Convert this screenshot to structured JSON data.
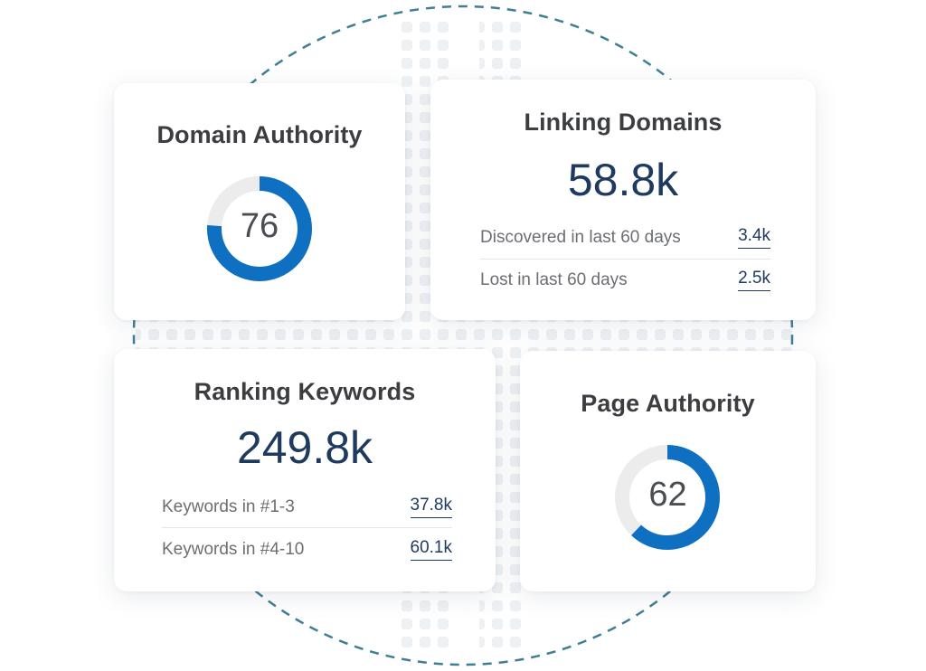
{
  "colors": {
    "accent": "#0f6fc0",
    "track": "#ececec",
    "navy": "#1f3a5f",
    "dashed_circle": "#3f7f95"
  },
  "domain_authority": {
    "title": "Domain Authority",
    "score": 76,
    "score_label": "76"
  },
  "linking_domains": {
    "title": "Linking Domains",
    "value": "58.8k",
    "rows": [
      {
        "label": "Discovered in last 60 days",
        "value": "3.4k"
      },
      {
        "label": "Lost in last 60 days",
        "value": "2.5k"
      }
    ]
  },
  "ranking_keywords": {
    "title": "Ranking Keywords",
    "value": "249.8k",
    "rows": [
      {
        "label": "Keywords in #1-3",
        "value": "37.8k"
      },
      {
        "label": "Keywords in #4-10",
        "value": "60.1k"
      }
    ]
  },
  "page_authority": {
    "title": "Page Authority",
    "score": 62,
    "score_label": "62"
  }
}
